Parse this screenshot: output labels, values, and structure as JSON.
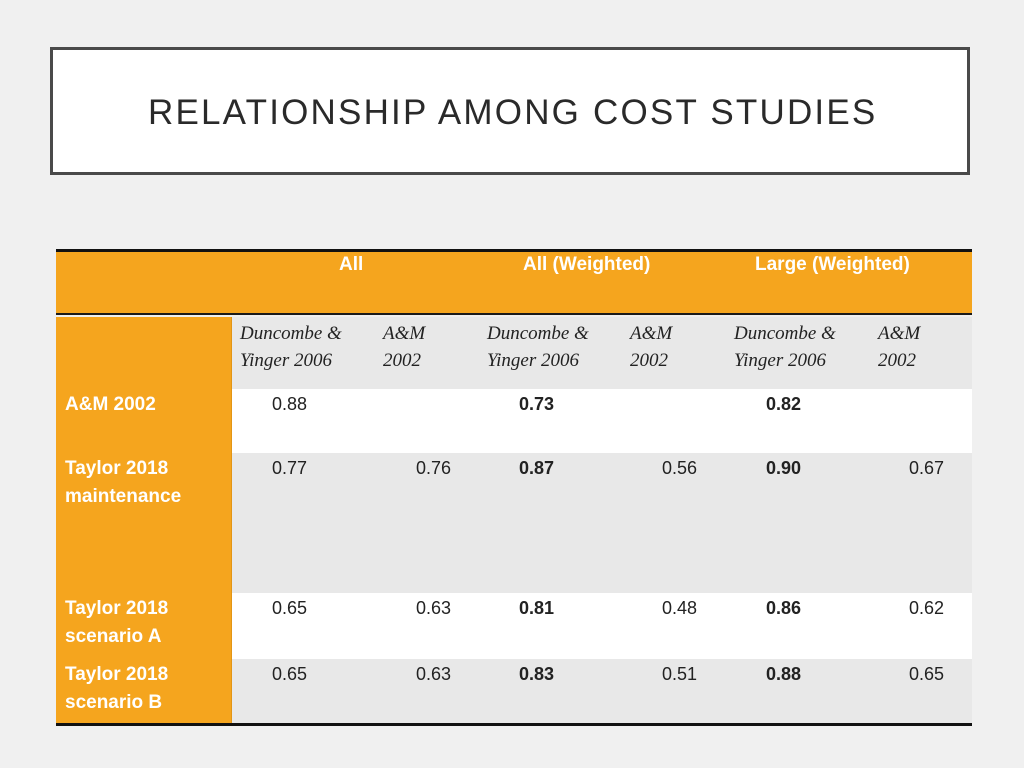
{
  "slide": {
    "title": "RELATIONSHIP AMONG COST STUDIES"
  },
  "table": {
    "groups": [
      "All",
      "All (Weighted)",
      "Large (Weighted)"
    ],
    "subheaders": [
      [
        "Duncombe &",
        "Yinger 2006"
      ],
      [
        "A&M",
        "2002"
      ],
      [
        "Duncombe &",
        "Yinger 2006"
      ],
      [
        "A&M",
        "2002"
      ],
      [
        "Duncombe &",
        "Yinger 2006"
      ],
      [
        "A&M",
        "2002"
      ]
    ],
    "rows": [
      {
        "label": "A&M 2002",
        "values": [
          "0.88",
          "",
          "0.73",
          "",
          "0.82",
          ""
        ]
      },
      {
        "label": "Taylor 2018\nmaintenance",
        "values": [
          "0.77",
          "0.76",
          "0.87",
          "0.56",
          "0.90",
          "0.67"
        ]
      },
      {
        "label": "Taylor 2018\nscenario A",
        "values": [
          "0.65",
          "0.63",
          "0.81",
          "0.48",
          "0.86",
          "0.62"
        ]
      },
      {
        "label": "Taylor 2018\nscenario B",
        "values": [
          "0.65",
          "0.63",
          "0.83",
          "0.51",
          "0.88",
          "0.65"
        ]
      }
    ],
    "bold_columns": [
      2,
      4
    ],
    "colors": {
      "accent": "#f5a51e",
      "row_grey": "#e8e8e8",
      "row_white": "#ffffff",
      "rule": "#111111"
    }
  }
}
